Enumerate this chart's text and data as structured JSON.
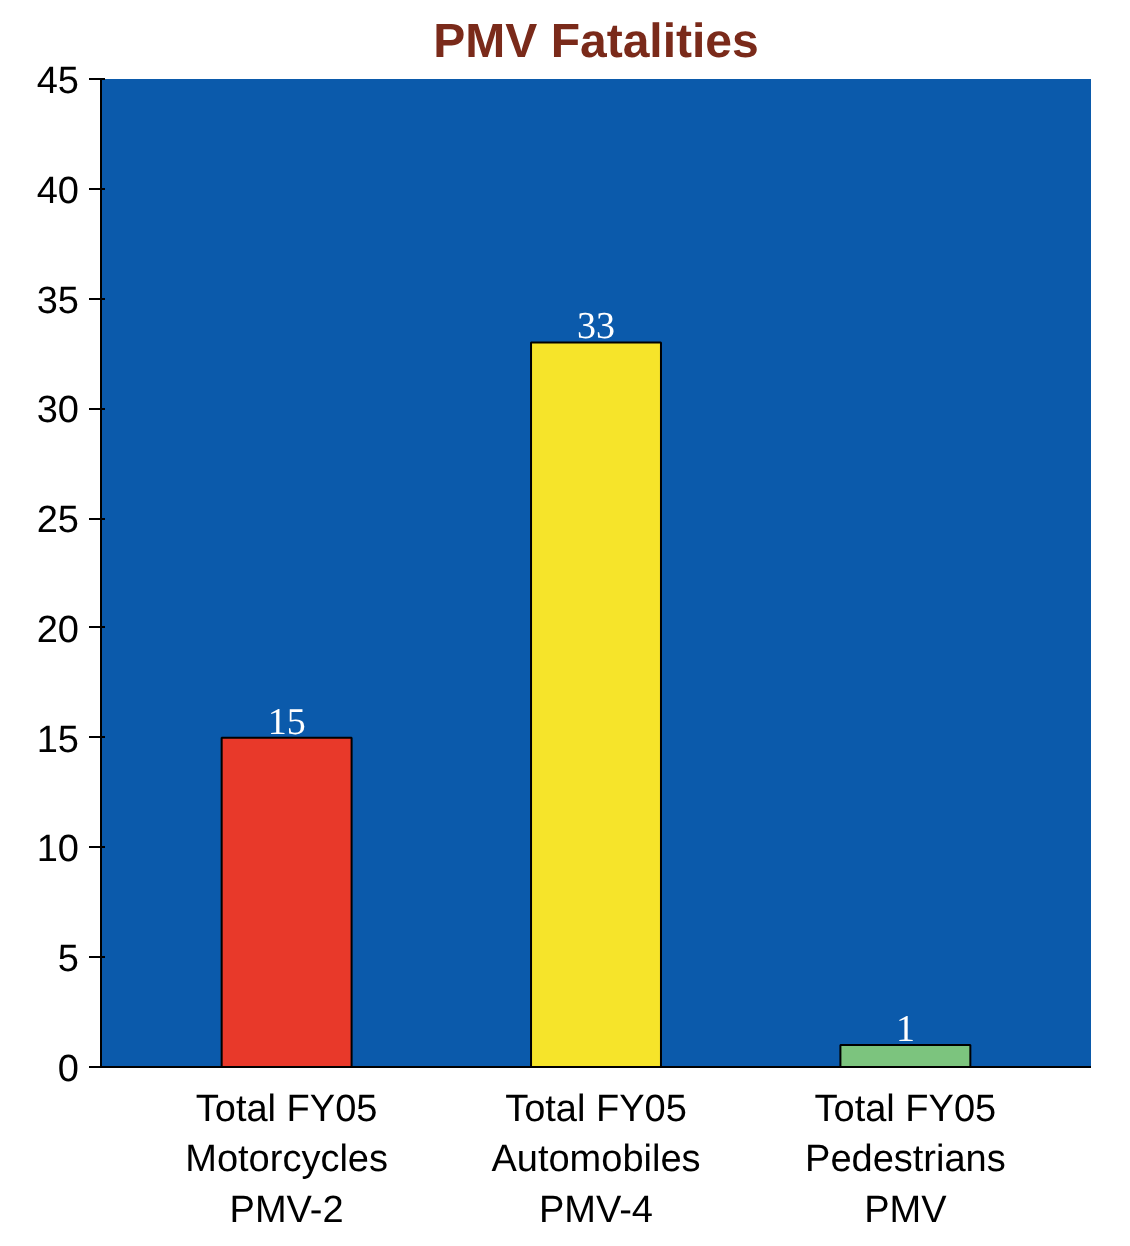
{
  "chart_data": {
    "type": "bar",
    "title": "PMV Fatalities",
    "categories": [
      "Total FY05\nMotorcycles\nPMV-2",
      "Total FY05\nAutomobiles\nPMV-4",
      "Total FY05\nPedestrians\nPMV"
    ],
    "values": [
      15,
      33,
      1
    ],
    "colors": [
      "#e8392a",
      "#f6e42a",
      "#7cc47e"
    ],
    "ylim": [
      0,
      45
    ],
    "yticks": [
      0,
      5,
      10,
      15,
      20,
      25,
      30,
      35,
      40,
      45
    ],
    "grid": false,
    "data_labels": true
  }
}
